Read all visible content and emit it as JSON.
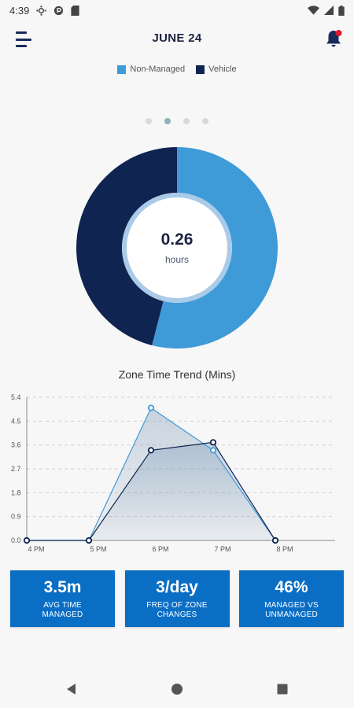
{
  "status_bar": {
    "time": "4:39",
    "left_icons": [
      "settings-dot-icon",
      "circle-p-icon",
      "sd-card-icon"
    ],
    "right_icons": [
      "wifi-icon",
      "signal-icon",
      "battery-icon"
    ]
  },
  "header": {
    "title": "JUNE 24",
    "menu_icon": "hamburger-menu-icon",
    "bell_icon": "notification-bell-icon",
    "bell_badge_color": "#e0182d"
  },
  "legend": [
    {
      "label": "Non-Managed",
      "color": "#3f9ad8"
    },
    {
      "label": "Vehicle",
      "color": "#0f2450"
    }
  ],
  "pager": {
    "count": 4,
    "active_index": 1
  },
  "donut": {
    "value": "0.26",
    "unit": "hours",
    "segments": [
      {
        "label": "Non-Managed",
        "fraction": 0.54,
        "color": "#3f9ad8"
      },
      {
        "label": "Vehicle",
        "fraction": 0.46,
        "color": "#0f2450"
      }
    ]
  },
  "trend": {
    "title": "Zone Time Trend (Mins)"
  },
  "chart_data": {
    "type": "line",
    "title": "Zone Time Trend (Mins)",
    "categories": [
      "4 PM",
      "5 PM",
      "6 PM",
      "7 PM",
      "8 PM"
    ],
    "y_ticks": [
      "0.0",
      "0.9",
      "1.8",
      "2.7",
      "3.6",
      "4.5",
      "5.4"
    ],
    "ylim": [
      0,
      5.4
    ],
    "grid": true,
    "series": [
      {
        "name": "Non-Managed",
        "color": "#3f9ad8",
        "values": [
          0,
          0,
          5.0,
          3.4,
          0
        ]
      },
      {
        "name": "Vehicle",
        "color": "#0f2450",
        "values": [
          0,
          0,
          3.4,
          3.7,
          0
        ]
      }
    ]
  },
  "stats": [
    {
      "value": "3.5m",
      "label_line1": "AVG TIME",
      "label_line2": "MANAGED"
    },
    {
      "value": "3/day",
      "label_line1": "FREQ OF ZONE",
      "label_line2": "CHANGES"
    },
    {
      "value": "46%",
      "label_line1": "MANAGED VS",
      "label_line2": "UNMANAGED"
    }
  ],
  "nav_bar": {
    "icons": [
      "back-icon",
      "home-icon",
      "recents-icon"
    ]
  }
}
